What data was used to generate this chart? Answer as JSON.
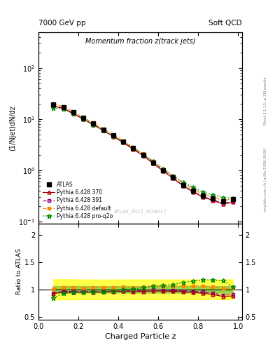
{
  "title_main": "Momentum fraction z(track jets)",
  "title_top_left": "7000 GeV pp",
  "title_top_right": "Soft QCD",
  "ylabel_main": "(1/Njet)dN/dz",
  "ylabel_ratio": "Ratio to ATLAS",
  "xlabel": "Charged Particle z",
  "watermark": "ATLAS_2011_I919017",
  "right_label": "Rivet 3.1.10, ≥ 2M events",
  "right_label2": "mcplots.cern.ch [arXiv:1306.3436]",
  "atlas_x": [
    0.075,
    0.125,
    0.175,
    0.225,
    0.275,
    0.325,
    0.375,
    0.425,
    0.475,
    0.525,
    0.575,
    0.625,
    0.675,
    0.725,
    0.775,
    0.825,
    0.875,
    0.925,
    0.975
  ],
  "atlas_y": [
    19.5,
    17.0,
    13.5,
    10.5,
    8.2,
    6.3,
    4.8,
    3.6,
    2.7,
    2.0,
    1.4,
    1.0,
    0.72,
    0.52,
    0.4,
    0.32,
    0.285,
    0.25,
    0.27
  ],
  "atlas_yerr": [
    0.8,
    0.7,
    0.55,
    0.42,
    0.33,
    0.25,
    0.19,
    0.145,
    0.108,
    0.08,
    0.056,
    0.04,
    0.029,
    0.021,
    0.016,
    0.013,
    0.011,
    0.01,
    0.011
  ],
  "py370_y": [
    18.0,
    16.2,
    12.8,
    10.0,
    7.8,
    6.0,
    4.6,
    3.48,
    2.58,
    1.93,
    1.36,
    0.97,
    0.695,
    0.497,
    0.378,
    0.298,
    0.258,
    0.218,
    0.238
  ],
  "py391_y": [
    18.2,
    16.4,
    13.0,
    10.1,
    7.85,
    6.05,
    4.62,
    3.52,
    2.62,
    1.96,
    1.39,
    0.985,
    0.705,
    0.505,
    0.385,
    0.305,
    0.265,
    0.225,
    0.245
  ],
  "pydef_y": [
    19.8,
    17.5,
    13.9,
    10.8,
    8.45,
    6.5,
    4.98,
    3.76,
    2.81,
    2.1,
    1.49,
    1.063,
    0.765,
    0.552,
    0.425,
    0.34,
    0.298,
    0.255,
    0.276
  ],
  "pyq2o_y": [
    16.5,
    15.8,
    12.7,
    9.95,
    7.82,
    6.05,
    4.68,
    3.6,
    2.72,
    2.06,
    1.48,
    1.07,
    0.785,
    0.585,
    0.462,
    0.376,
    0.334,
    0.291,
    0.282
  ],
  "color_atlas": "#000000",
  "color_py370": "#aa0000",
  "color_py391": "#880088",
  "color_pydef": "#ff8800",
  "color_pyq2o": "#008800",
  "ylim_main": [
    0.09,
    500
  ],
  "ylim_ratio": [
    0.45,
    2.2
  ],
  "xlim": [
    0.0,
    1.02
  ]
}
